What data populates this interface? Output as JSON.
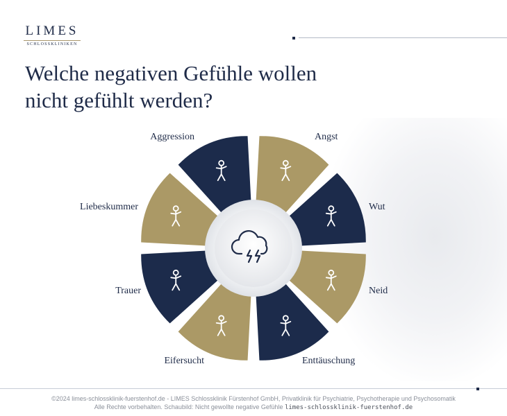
{
  "logo": {
    "word": "LIMES",
    "sub": "SCHLOSSKLINIKEN"
  },
  "title_line1": "Welche negativen Gefühle wollen",
  "title_line2": "nicht gefühlt werden?",
  "segments": [
    {
      "label": "Angst",
      "icon": "fearful-figure-icon",
      "color": "#ab9966"
    },
    {
      "label": "Wut",
      "icon": "angry-figure-icon",
      "color": "#1c2b4b"
    },
    {
      "label": "Neid",
      "icon": "envious-figure-icon",
      "color": "#ab9966"
    },
    {
      "label": "Enttäuschung",
      "icon": "disappointed-figure-icon",
      "color": "#1c2b4b"
    },
    {
      "label": "Eifersucht",
      "icon": "jealous-figure-icon",
      "color": "#ab9966"
    },
    {
      "label": "Trauer",
      "icon": "sad-figure-icon",
      "color": "#1c2b4b"
    },
    {
      "label": "Liebeskummer",
      "icon": "heartbreak-figure-icon",
      "color": "#ab9966"
    },
    {
      "label": "Aggression",
      "icon": "aggressive-figure-icon",
      "color": "#1c2b4b"
    }
  ],
  "center_icon": "storm-cloud-icon",
  "footer_line1": "©2024 limes-schlossklinik-fuerstenhof.de - LIMES Schlossklinik Fürstenhof GmbH, Privatklinik für Psychiatrie, Psychotherapie und Psychosomatik",
  "footer_line2": "Alle Rechte vorbehalten. Schaubild: Nicht gewollte negative Gefühle",
  "footer_url": "limes-schlossklinik-fuerstenhof.de"
}
